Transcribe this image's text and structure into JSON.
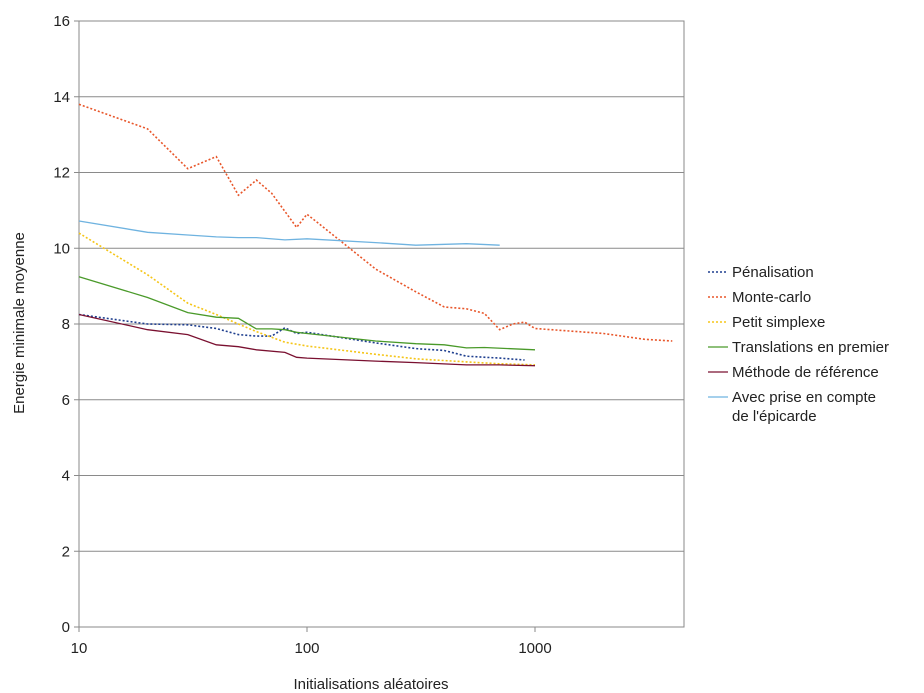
{
  "chart_data": {
    "type": "line",
    "xlabel": "Initialisations aléatoires",
    "ylabel": "Energie minimale moyenne",
    "xscale": "log",
    "xlim": [
      10,
      4000
    ],
    "ylim": [
      0,
      16
    ],
    "xticks": [
      10,
      100,
      1000
    ],
    "yticks": [
      0,
      2,
      4,
      6,
      8,
      10,
      12,
      14,
      16
    ],
    "grid": "horizontal",
    "legend_position": "right",
    "series": [
      {
        "name": "Pénalisation",
        "color": "#1f3f8f",
        "style": "dotted",
        "points": [
          [
            10,
            8.25
          ],
          [
            20,
            8.0
          ],
          [
            30,
            7.98
          ],
          [
            40,
            7.88
          ],
          [
            50,
            7.72
          ],
          [
            60,
            7.68
          ],
          [
            70,
            7.68
          ],
          [
            80,
            7.9
          ],
          [
            90,
            7.75
          ],
          [
            100,
            7.78
          ],
          [
            200,
            7.5
          ],
          [
            300,
            7.35
          ],
          [
            400,
            7.3
          ],
          [
            500,
            7.15
          ],
          [
            700,
            7.1
          ],
          [
            900,
            7.05
          ]
        ]
      },
      {
        "name": "Monte-carlo",
        "color": "#e8562a",
        "style": "dotted",
        "points": [
          [
            10,
            13.8
          ],
          [
            20,
            13.15
          ],
          [
            30,
            12.1
          ],
          [
            40,
            12.42
          ],
          [
            50,
            11.4
          ],
          [
            60,
            11.8
          ],
          [
            70,
            11.45
          ],
          [
            90,
            10.55
          ],
          [
            100,
            10.9
          ],
          [
            200,
            9.45
          ],
          [
            300,
            8.85
          ],
          [
            400,
            8.45
          ],
          [
            500,
            8.4
          ],
          [
            600,
            8.28
          ],
          [
            700,
            7.85
          ],
          [
            800,
            8.0
          ],
          [
            900,
            8.05
          ],
          [
            1000,
            7.88
          ],
          [
            2000,
            7.75
          ],
          [
            3000,
            7.6
          ],
          [
            4000,
            7.55
          ]
        ]
      },
      {
        "name": "Petit simplexe",
        "color": "#f5c518",
        "style": "dotted",
        "points": [
          [
            10,
            10.4
          ],
          [
            20,
            9.3
          ],
          [
            30,
            8.55
          ],
          [
            40,
            8.25
          ],
          [
            50,
            8.0
          ],
          [
            60,
            7.8
          ],
          [
            70,
            7.65
          ],
          [
            80,
            7.52
          ],
          [
            100,
            7.42
          ],
          [
            200,
            7.2
          ],
          [
            300,
            7.08
          ],
          [
            500,
            7.0
          ],
          [
            700,
            6.95
          ],
          [
            1000,
            6.92
          ]
        ]
      },
      {
        "name": "Translations en premier",
        "color": "#4a9a2a",
        "style": "solid",
        "points": [
          [
            10,
            9.25
          ],
          [
            20,
            8.7
          ],
          [
            30,
            8.3
          ],
          [
            40,
            8.18
          ],
          [
            50,
            8.15
          ],
          [
            60,
            7.87
          ],
          [
            70,
            7.87
          ],
          [
            80,
            7.85
          ],
          [
            90,
            7.78
          ],
          [
            100,
            7.75
          ],
          [
            200,
            7.55
          ],
          [
            300,
            7.48
          ],
          [
            400,
            7.45
          ],
          [
            500,
            7.37
          ],
          [
            600,
            7.38
          ],
          [
            1000,
            7.32
          ]
        ]
      },
      {
        "name": "Méthode de référence",
        "color": "#7a1030",
        "style": "solid",
        "points": [
          [
            10,
            8.25
          ],
          [
            20,
            7.85
          ],
          [
            30,
            7.72
          ],
          [
            40,
            7.45
          ],
          [
            50,
            7.4
          ],
          [
            60,
            7.32
          ],
          [
            80,
            7.25
          ],
          [
            90,
            7.12
          ],
          [
            100,
            7.1
          ],
          [
            200,
            7.02
          ],
          [
            300,
            6.98
          ],
          [
            500,
            6.92
          ],
          [
            700,
            6.92
          ],
          [
            1000,
            6.9
          ]
        ]
      },
      {
        "name": "Avec prise en compte de l'épicarde",
        "legend_lines": [
          "Avec prise en compte",
          "de l'épicarde"
        ],
        "color": "#6fb3e0",
        "style": "solid",
        "points": [
          [
            10,
            10.72
          ],
          [
            20,
            10.42
          ],
          [
            30,
            10.35
          ],
          [
            40,
            10.3
          ],
          [
            50,
            10.28
          ],
          [
            60,
            10.28
          ],
          [
            80,
            10.22
          ],
          [
            100,
            10.25
          ],
          [
            200,
            10.15
          ],
          [
            300,
            10.08
          ],
          [
            500,
            10.12
          ],
          [
            700,
            10.08
          ]
        ]
      }
    ]
  }
}
